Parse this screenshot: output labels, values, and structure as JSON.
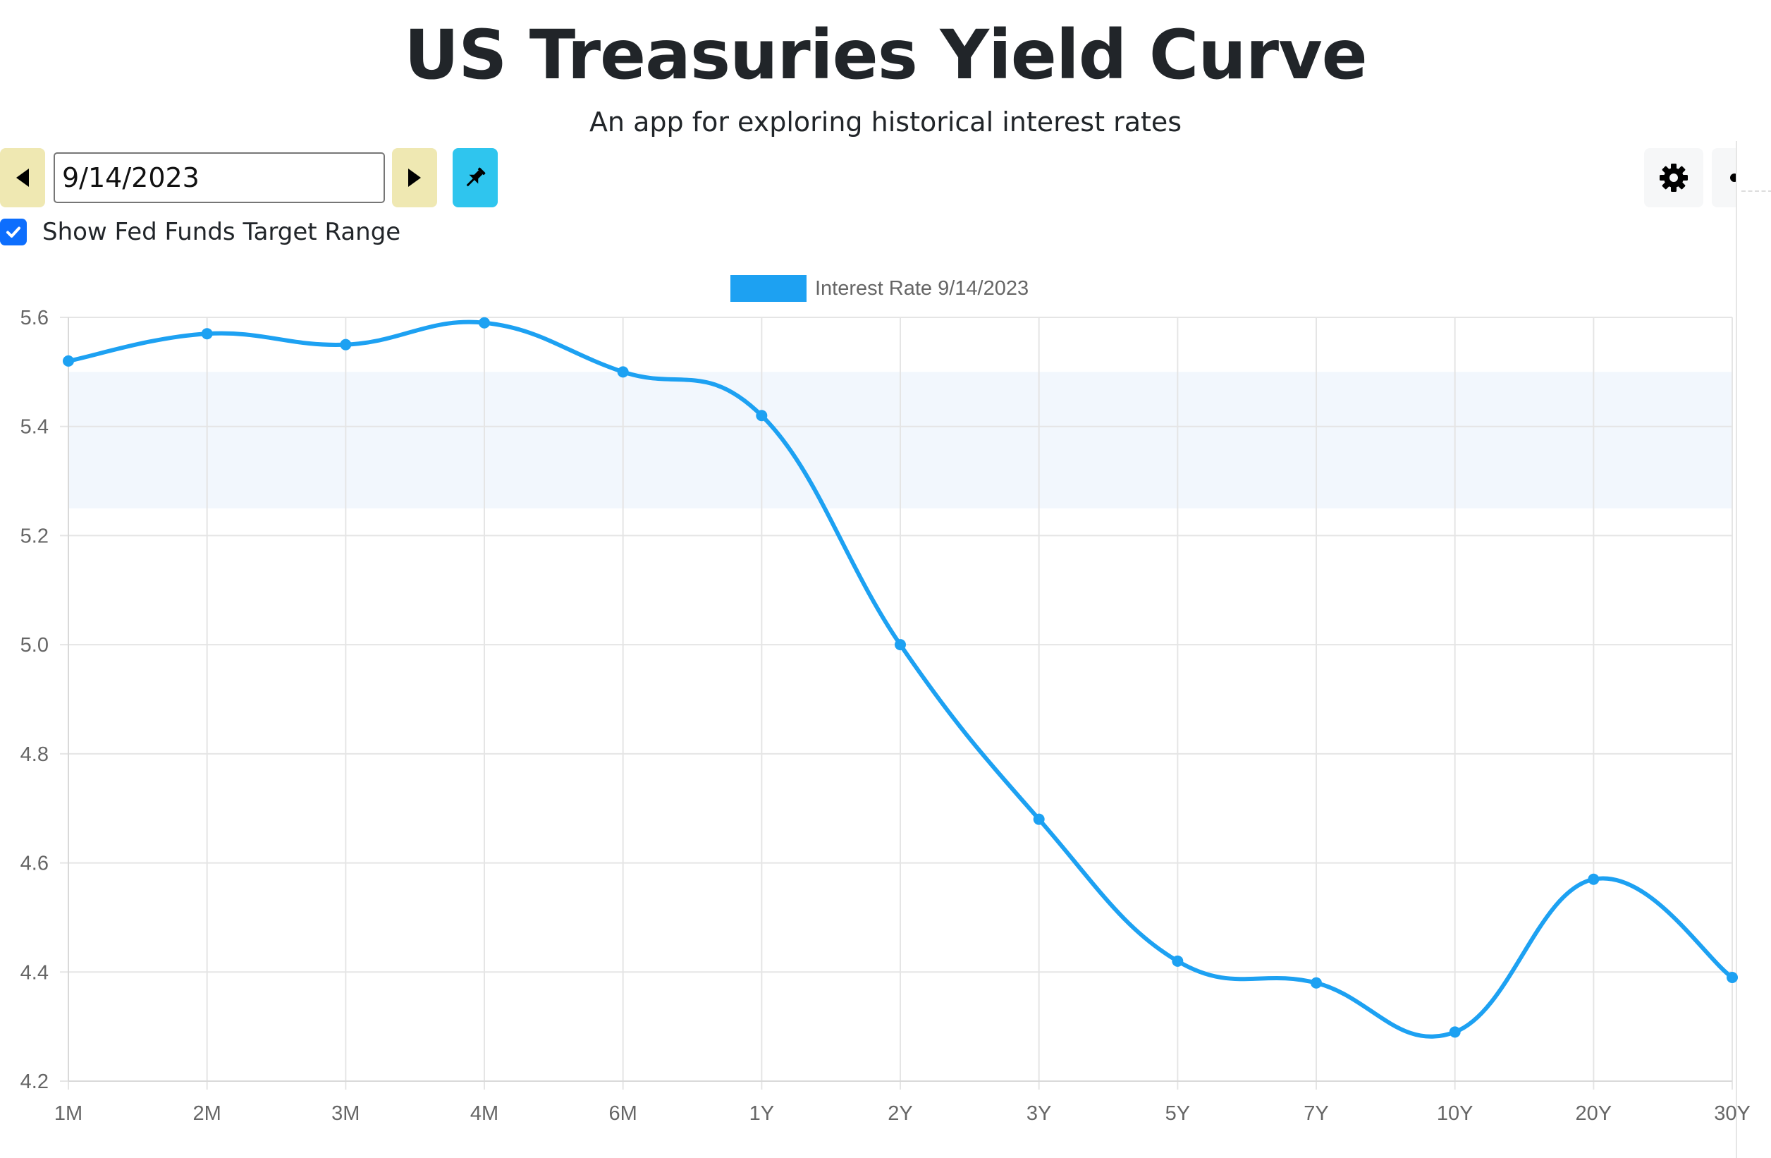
{
  "header": {
    "title": "US Treasuries Yield Curve",
    "subtitle": "An app for exploring historical interest rates"
  },
  "controls": {
    "date_value": "9/14/2023",
    "fed_funds_label": "Show Fed Funds Target Range",
    "fed_funds_checked": true
  },
  "icons": {
    "prev": "caret-left-icon",
    "next": "caret-right-icon",
    "pin": "pushpin-icon",
    "settings": "gear-icon",
    "more": "more-icon",
    "checkbox": "checkmark-icon"
  },
  "colors": {
    "series": "#1da1f2",
    "band": "#f2f7fd",
    "nav_button": "#efe8b2",
    "pin_button": "#2fc5ee",
    "checkbox": "#0d6efd",
    "grid": "#e5e5e5"
  },
  "chart_data": {
    "type": "line",
    "title": "",
    "legend_label": "Interest Rate 9/14/2023",
    "legend_position": "top-center",
    "categories": [
      "1M",
      "2M",
      "3M",
      "4M",
      "6M",
      "1Y",
      "2Y",
      "3Y",
      "5Y",
      "7Y",
      "10Y",
      "20Y",
      "30Y"
    ],
    "series": [
      {
        "name": "Interest Rate 9/14/2023",
        "values": [
          5.52,
          5.57,
          5.55,
          5.59,
          5.5,
          5.42,
          5.0,
          4.68,
          4.42,
          4.38,
          4.29,
          4.57,
          4.39
        ]
      }
    ],
    "fed_funds_target_range": [
      5.25,
      5.5
    ],
    "ylim": [
      4.2,
      5.6
    ],
    "yticks": [
      "4.2",
      "4.4",
      "4.6",
      "4.8",
      "5.0",
      "5.2",
      "5.4",
      "5.6"
    ],
    "xlabel": "",
    "ylabel": "",
    "grid": true,
    "smooth": true
  }
}
